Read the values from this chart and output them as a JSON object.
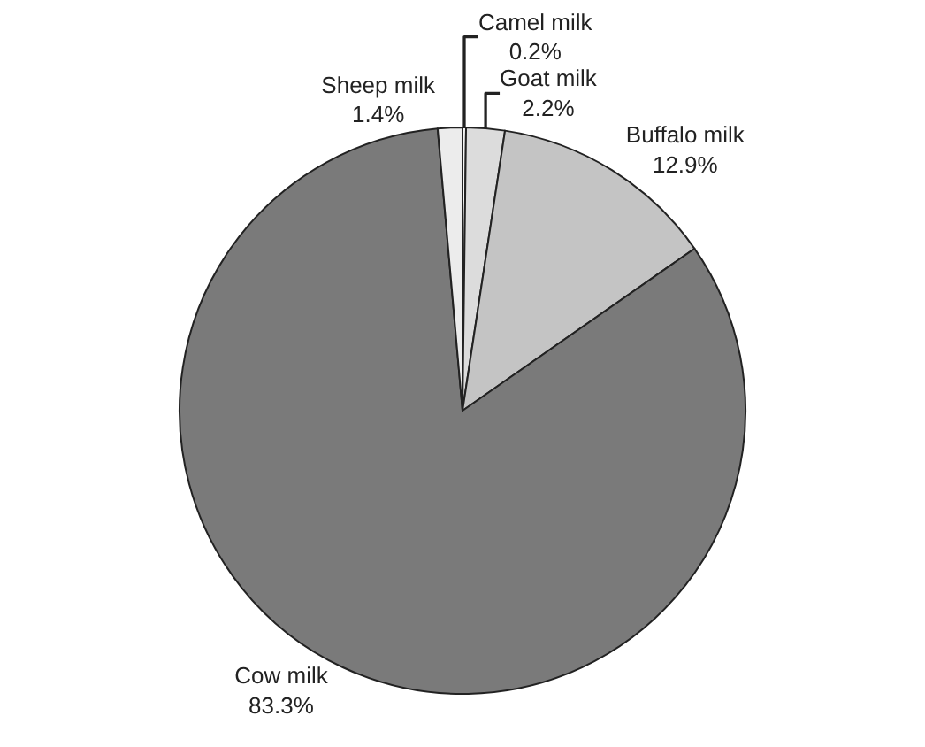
{
  "chart_data": {
    "type": "pie",
    "categories": [
      "Camel milk",
      "Goat milk",
      "Buffalo milk",
      "Cow milk",
      "Sheep milk"
    ],
    "values": [
      0.2,
      2.2,
      12.9,
      83.3,
      1.4
    ],
    "value_labels": [
      "0.2%",
      "2.2%",
      "12.9%",
      "83.3%",
      "1.4%"
    ],
    "colors": [
      "#f4f4f4",
      "#dcdcdc",
      "#c4c4c4",
      "#7a7a7a",
      "#ececec"
    ],
    "legend": false
  }
}
